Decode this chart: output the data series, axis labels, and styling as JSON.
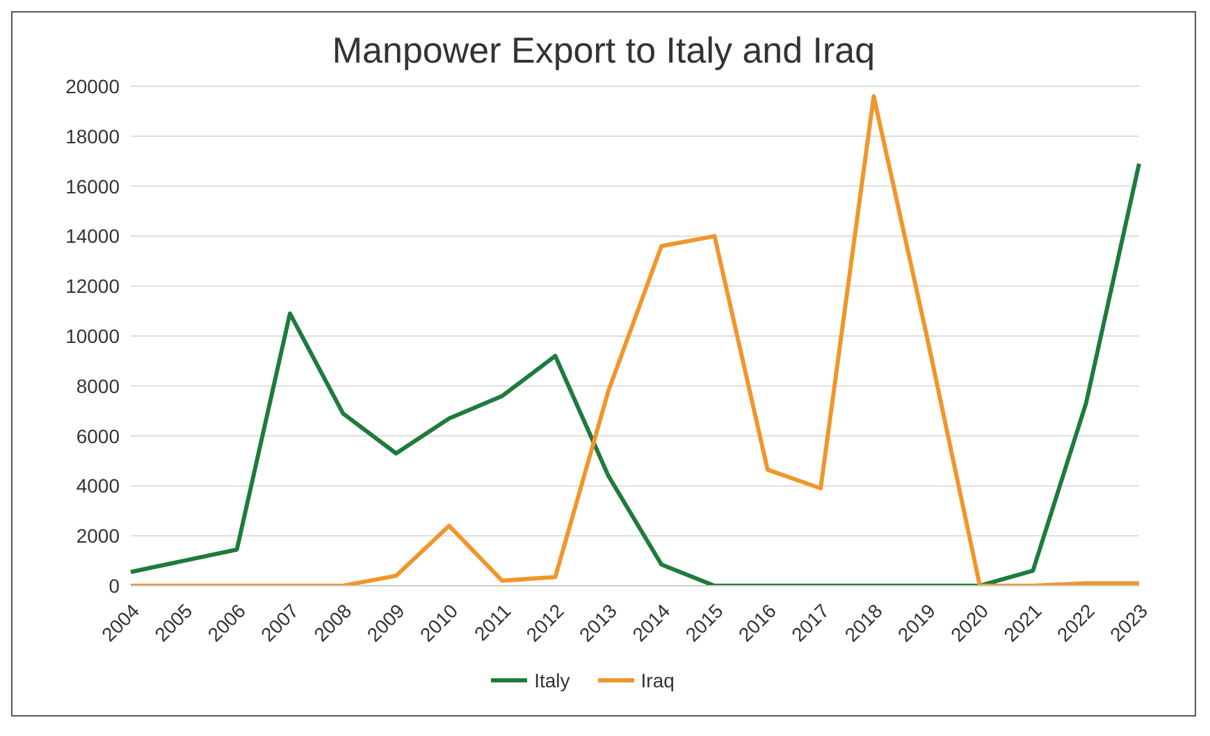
{
  "chart_data": {
    "type": "line",
    "title": "Manpower Export to Italy and Iraq",
    "categories": [
      "2004",
      "2005",
      "2006",
      "2007",
      "2008",
      "2009",
      "2010",
      "2011",
      "2012",
      "2013",
      "2014",
      "2015",
      "2016",
      "2017",
      "2018",
      "2019",
      "2020",
      "2021",
      "2022",
      "2023"
    ],
    "series": [
      {
        "name": "Italy",
        "color": "#1e7b3c",
        "values": [
          550,
          1000,
          1450,
          10900,
          6900,
          5300,
          6700,
          7600,
          9200,
          4400,
          850,
          0,
          0,
          0,
          0,
          0,
          0,
          600,
          7300,
          16900
        ]
      },
      {
        "name": "Iraq",
        "color": "#f0962a",
        "values": [
          0,
          0,
          0,
          0,
          0,
          400,
          2400,
          200,
          350,
          7800,
          13600,
          14000,
          4650,
          3900,
          19600,
          10000,
          0,
          0,
          100,
          100
        ]
      }
    ],
    "ylim": [
      0,
      20000
    ],
    "yticks": [
      0,
      2000,
      4000,
      6000,
      8000,
      10000,
      12000,
      14000,
      16000,
      18000,
      20000
    ],
    "grid": "y",
    "legend": "bottom",
    "marker": "none",
    "line_style": "solid"
  }
}
